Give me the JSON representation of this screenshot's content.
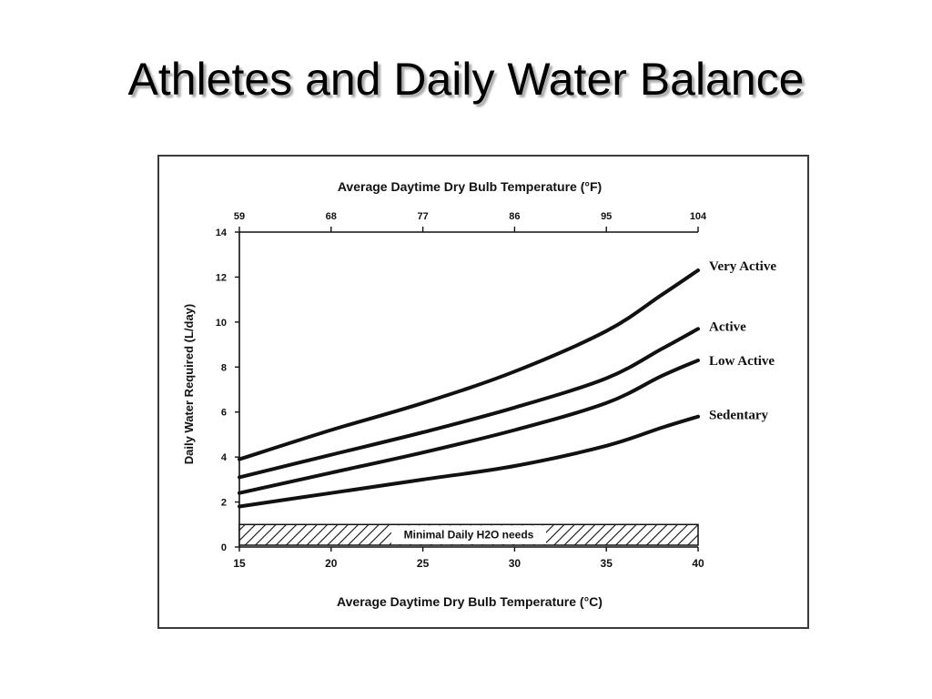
{
  "slide": {
    "title": "Athletes and Daily Water Balance"
  },
  "chart_data": {
    "type": "line",
    "xlabel": "Average Daytime Dry Bulb Temperature (°C)",
    "x2label": "Average Daytime Dry Bulb Temperature (°F)",
    "ylabel": "Daily Water Required (L/day)",
    "xlim": [
      15,
      40
    ],
    "ylim": [
      0,
      14
    ],
    "x_ticks": [
      15,
      20,
      25,
      30,
      35,
      40
    ],
    "x2_ticks": [
      59,
      68,
      77,
      86,
      95,
      104
    ],
    "y_ticks": [
      0,
      2,
      4,
      6,
      8,
      10,
      12,
      14
    ],
    "grid": false,
    "series": [
      {
        "name": "Very Active",
        "x": [
          15,
          20,
          25,
          30,
          35,
          38,
          40
        ],
        "y": [
          3.9,
          5.2,
          6.4,
          7.8,
          9.6,
          11.2,
          12.3
        ]
      },
      {
        "name": "Active",
        "x": [
          15,
          20,
          25,
          30,
          35,
          38,
          40
        ],
        "y": [
          3.1,
          4.1,
          5.1,
          6.2,
          7.5,
          8.8,
          9.7
        ]
      },
      {
        "name": "Low Active",
        "x": [
          15,
          20,
          25,
          30,
          35,
          38,
          40
        ],
        "y": [
          2.4,
          3.3,
          4.2,
          5.2,
          6.4,
          7.6,
          8.3
        ]
      },
      {
        "name": "Sedentary",
        "x": [
          15,
          20,
          25,
          30,
          35,
          38,
          40
        ],
        "y": [
          1.8,
          2.4,
          3.0,
          3.6,
          4.5,
          5.3,
          5.8
        ]
      }
    ],
    "annotations": [
      {
        "text": "Minimal Daily H2O needs",
        "x_range": [
          15,
          40
        ],
        "y_range": [
          0,
          1.0
        ],
        "style": "hatched band"
      }
    ]
  }
}
